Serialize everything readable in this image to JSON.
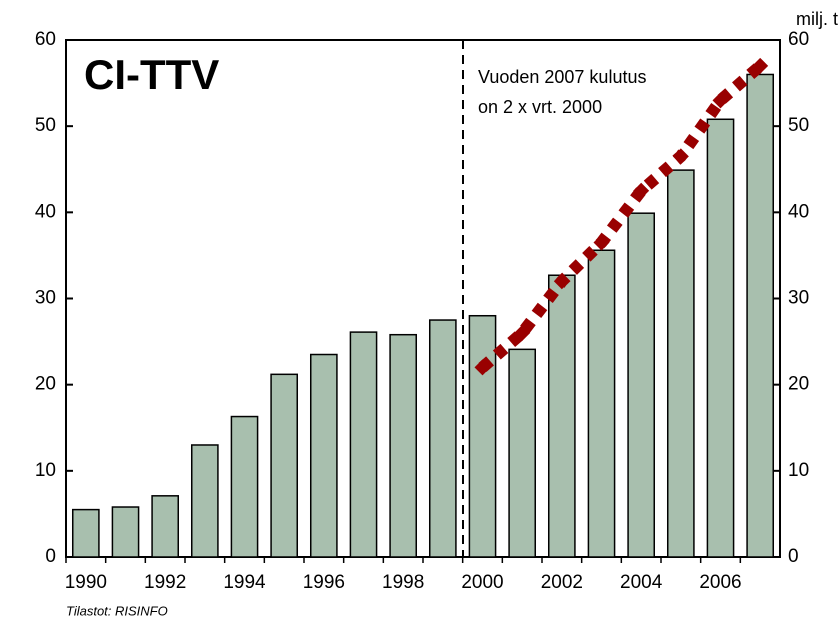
{
  "chart_data": {
    "type": "bar",
    "title": "CI-TTV",
    "annotation": [
      "Vuoden 2007 kulutus",
      "on 2 x vrt. 2000"
    ],
    "unit_label": "milj. t",
    "source": "Tilastot: RISINFO",
    "categories": [
      "1990",
      null,
      "1992",
      null,
      "1994",
      null,
      "1996",
      null,
      "1998",
      null,
      "2000",
      null,
      "2002",
      null,
      "2004",
      null,
      "2006",
      null
    ],
    "series": [
      {
        "type": "bar",
        "color": "#a8bfae",
        "values": [
          5.5,
          5.8,
          7.1,
          13,
          16.3,
          21.2,
          23.5,
          26.1,
          25.8,
          27.5,
          28,
          24.1,
          32.7,
          35.6,
          39.9,
          44.9,
          50.8,
          56
        ]
      },
      {
        "type": "line",
        "color": "#990000",
        "values": [
          null,
          null,
          null,
          null,
          null,
          null,
          null,
          null,
          null,
          null,
          22,
          26,
          32,
          36.5,
          42.5,
          46.5,
          53,
          57
        ]
      }
    ],
    "ylim": [
      0,
      60
    ],
    "yticks": [
      0,
      10,
      20,
      30,
      40,
      50,
      60
    ],
    "y2lim": [
      0,
      60
    ],
    "y2ticks": [
      0,
      10,
      20,
      30,
      40,
      50,
      60
    ]
  }
}
